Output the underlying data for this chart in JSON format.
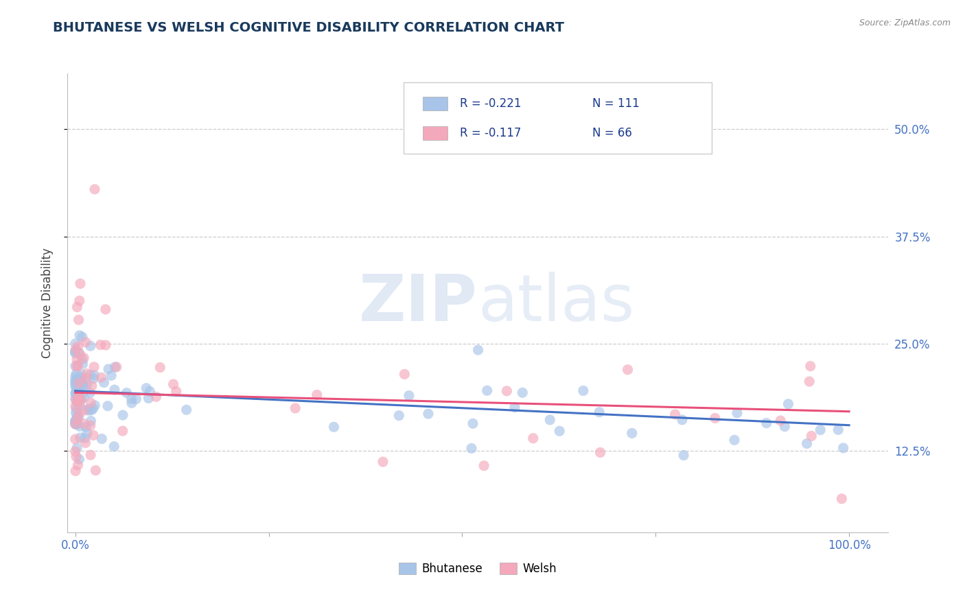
{
  "title": "BHUTANESE VS WELSH COGNITIVE DISABILITY CORRELATION CHART",
  "source": "Source: ZipAtlas.com",
  "ylabel": "Cognitive Disability",
  "bhutanese_color": "#a8c4e8",
  "welsh_color": "#f4a8bb",
  "bhutanese_line_color": "#4472c4",
  "welsh_line_color": "#e8507a",
  "R_bhutanese": -0.221,
  "N_bhutanese": 111,
  "R_welsh": -0.117,
  "N_welsh": 66,
  "legend_label_bhutanese": "Bhutanese",
  "legend_label_welsh": "Welsh",
  "watermark_zip": "ZIP",
  "watermark_atlas": "atlas",
  "background_color": "#ffffff",
  "grid_color": "#c8c8c8",
  "title_color": "#1a3a5c",
  "axis_label_color": "#4472c4",
  "source_color": "#888888"
}
